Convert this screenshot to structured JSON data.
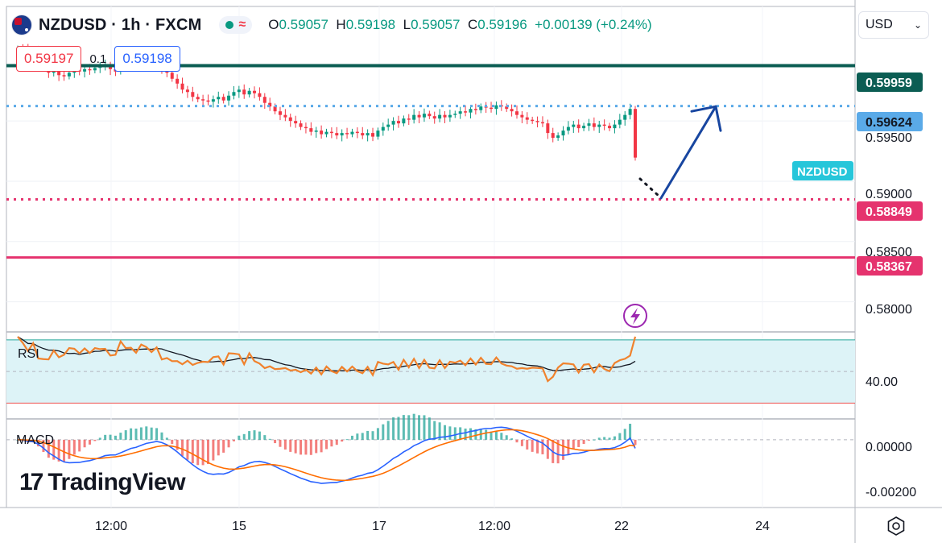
{
  "header": {
    "symbol": "NZDUSD · 1h · FXCM",
    "ohlc": {
      "o": "0.59057",
      "h": "0.59198",
      "l": "0.59057",
      "c": "0.59196",
      "change": "+0.00139 (+0.24%)"
    }
  },
  "trade": {
    "sell": "0.59197",
    "spread": "0.1",
    "buy": "0.59198"
  },
  "currency": "USD",
  "logo": {
    "mark": "17",
    "text": "TradingView"
  },
  "colors": {
    "up": "#089981",
    "down": "#f23645",
    "teal_line": "#0b5d53",
    "blue_dotted": "#5aaae8",
    "red_dotted": "#e5336e",
    "red_line": "#e5336e",
    "arrow": "#1846a0",
    "rsi": "#f0822d",
    "rsi_band": "#ddf3f7",
    "macd_line": "#2962ff",
    "macd_signal": "#ff6d00"
  },
  "chart_data": [
    {
      "type": "line",
      "subtype": "candlestick",
      "series": [
        {
          "name": "NZDUSD",
          "values": [
            0.601,
            0.6009,
            0.6006,
            0.6008,
            0.6001,
            0.5995,
            0.599,
            0.5991,
            0.5988,
            0.5987,
            0.599,
            0.5992,
            0.5991,
            0.5993,
            0.5992,
            0.5994,
            0.5995,
            0.5996,
            0.5993,
            0.5991,
            0.5997,
            0.5998,
            0.5999,
            0.5997,
            0.6,
            0.6001,
            0.5999,
            0.6,
            0.5994,
            0.599,
            0.5985,
            0.5981,
            0.5976,
            0.5974,
            0.597,
            0.5968,
            0.5967,
            0.5966,
            0.5968,
            0.597,
            0.5967,
            0.5971,
            0.5974,
            0.5976,
            0.5972,
            0.5975,
            0.5973,
            0.597,
            0.5965,
            0.5962,
            0.5958,
            0.5955,
            0.5953,
            0.595,
            0.5948,
            0.5945,
            0.5944,
            0.5941,
            0.5942,
            0.5939,
            0.5941,
            0.594,
            0.5938,
            0.594,
            0.5939,
            0.5941,
            0.594,
            0.5938,
            0.594,
            0.5937,
            0.5942,
            0.5945,
            0.5947,
            0.595,
            0.5948,
            0.5952,
            0.5951,
            0.5955,
            0.5953,
            0.5956,
            0.5954,
            0.5952,
            0.5955,
            0.5953,
            0.5955,
            0.5956,
            0.5958,
            0.5957,
            0.596,
            0.5959,
            0.5962,
            0.5961,
            0.596,
            0.5963,
            0.5962,
            0.596,
            0.5958,
            0.5955,
            0.5953,
            0.5951,
            0.595,
            0.5949,
            0.5948,
            0.594,
            0.5936,
            0.5938,
            0.5942,
            0.5945,
            0.5947,
            0.5944,
            0.5946,
            0.5948,
            0.5945,
            0.5947,
            0.5946,
            0.5944,
            0.5947,
            0.5951,
            0.5955,
            0.596,
            0.59196
          ]
        }
      ],
      "ylim": [
        0.5775,
        0.6045
      ],
      "y_ticks": [
        "0.59500",
        "0.59000",
        "0.58500",
        "0.58000"
      ],
      "x_ticks": [
        "12:00",
        "15",
        "17",
        "12:00",
        "22",
        "24"
      ],
      "levels": [
        {
          "name": "teal-line",
          "value": "0.59959",
          "style": "solid"
        },
        {
          "name": "blue-dotted",
          "value": "0.59624",
          "style": "dotted"
        },
        {
          "name": "red-dotted",
          "value": "0.58849",
          "style": "dotted"
        },
        {
          "name": "red-line",
          "value": "0.58367",
          "style": "solid"
        }
      ],
      "symbol_label": "NZDUSD",
      "projection": {
        "dots_to": 0.5886,
        "arrow_from": 0.5886,
        "arrow_to": 0.5962
      }
    },
    {
      "type": "line",
      "title": "RSI",
      "y_ticks": [
        "40.00"
      ],
      "band": [
        30,
        70
      ],
      "ylim": [
        20,
        75
      ]
    },
    {
      "type": "bar",
      "title": "MACD",
      "y_ticks": [
        "0.00000",
        "-0.00200"
      ],
      "ylim": [
        -0.0026,
        0.0008
      ]
    }
  ]
}
